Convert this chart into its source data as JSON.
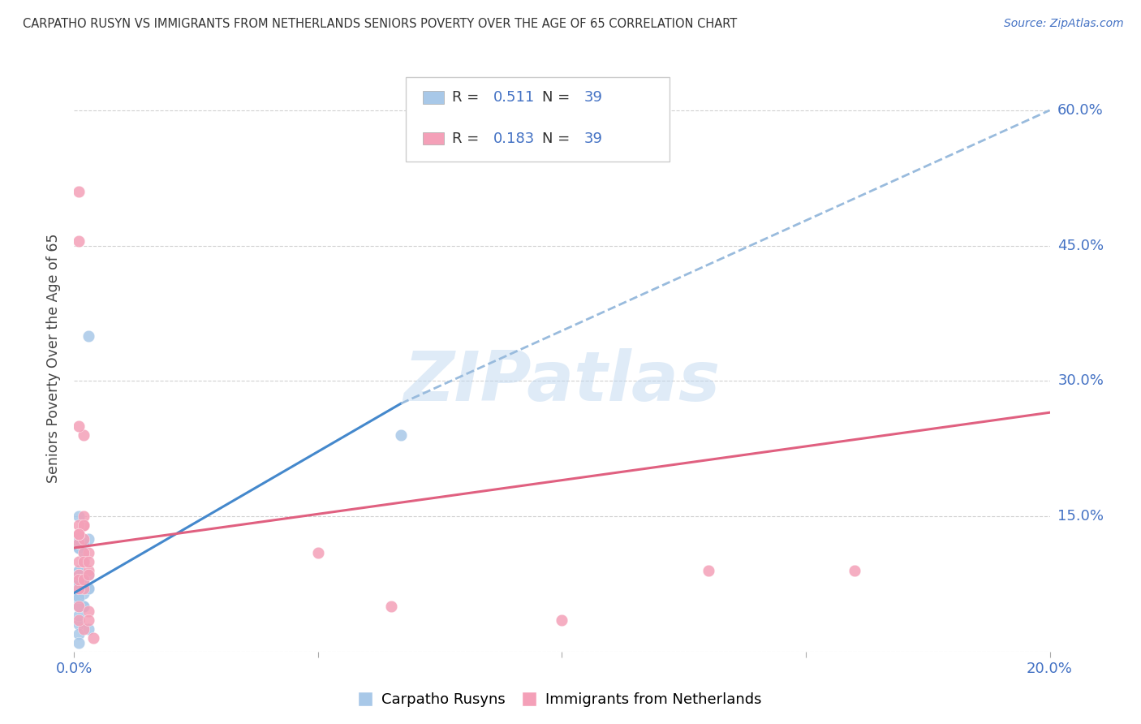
{
  "title": "CARPATHO RUSYN VS IMMIGRANTS FROM NETHERLANDS SENIORS POVERTY OVER THE AGE OF 65 CORRELATION CHART",
  "source": "Source: ZipAtlas.com",
  "ylabel": "Seniors Poverty Over the Age of 65",
  "xlim": [
    0.0,
    0.2
  ],
  "ylim": [
    0.0,
    0.65
  ],
  "yticks": [
    0.0,
    0.15,
    0.3,
    0.45,
    0.6
  ],
  "xticks": [
    0.0,
    0.05,
    0.1,
    0.15,
    0.2
  ],
  "ytick_labels_right": [
    "",
    "15.0%",
    "30.0%",
    "45.0%",
    "60.0%"
  ],
  "series1_color": "#a8c8e8",
  "series2_color": "#f4a0b8",
  "trend1_solid_color": "#4488cc",
  "trend1_dash_color": "#99bbdd",
  "trend2_color": "#e06080",
  "watermark": "ZIPatlas",
  "R1": "0.511",
  "N1": "39",
  "R2": "0.183",
  "N2": "39",
  "label1": "Carpatho Rusyns",
  "label2": "Immigrants from Netherlands",
  "accent_color": "#4472c4",
  "blue_x": [
    0.001,
    0.002,
    0.002,
    0.003,
    0.001,
    0.001,
    0.002,
    0.003,
    0.001,
    0.001,
    0.002,
    0.003,
    0.001,
    0.002,
    0.001,
    0.001,
    0.001,
    0.002,
    0.001,
    0.001,
    0.001,
    0.001,
    0.002,
    0.001,
    0.001,
    0.001,
    0.001,
    0.002,
    0.003,
    0.002,
    0.003,
    0.001,
    0.001,
    0.001,
    0.001,
    0.001,
    0.001,
    0.003,
    0.067
  ],
  "blue_y": [
    0.115,
    0.11,
    0.08,
    0.085,
    0.09,
    0.065,
    0.08,
    0.125,
    0.07,
    0.06,
    0.12,
    0.07,
    0.075,
    0.1,
    0.09,
    0.05,
    0.03,
    0.05,
    0.15,
    0.115,
    0.12,
    0.125,
    0.1,
    0.04,
    0.02,
    0.055,
    0.06,
    0.065,
    0.025,
    0.05,
    0.07,
    0.085,
    0.08,
    0.075,
    0.01,
    0.05,
    0.06,
    0.35,
    0.24
  ],
  "pink_x": [
    0.001,
    0.002,
    0.003,
    0.003,
    0.002,
    0.002,
    0.001,
    0.001,
    0.001,
    0.002,
    0.001,
    0.001,
    0.001,
    0.002,
    0.001,
    0.002,
    0.002,
    0.001,
    0.002,
    0.001,
    0.001,
    0.001,
    0.001,
    0.001,
    0.002,
    0.002,
    0.001,
    0.002,
    0.003,
    0.002,
    0.003,
    0.003,
    0.004,
    0.003,
    0.05,
    0.065,
    0.1,
    0.13,
    0.16
  ],
  "pink_y": [
    0.13,
    0.14,
    0.11,
    0.09,
    0.14,
    0.07,
    0.12,
    0.13,
    0.07,
    0.1,
    0.085,
    0.1,
    0.08,
    0.15,
    0.14,
    0.025,
    0.125,
    0.13,
    0.14,
    0.05,
    0.035,
    0.455,
    0.51,
    0.13,
    0.11,
    0.24,
    0.25,
    0.1,
    0.045,
    0.08,
    0.085,
    0.1,
    0.015,
    0.035,
    0.11,
    0.05,
    0.035,
    0.09,
    0.09
  ],
  "trend1_x0": 0.0,
  "trend1_y0": 0.065,
  "trend1_x1": 0.067,
  "trend1_y1": 0.275,
  "trend1_dash_x0": 0.067,
  "trend1_dash_y0": 0.275,
  "trend1_dash_x1": 0.2,
  "trend1_dash_y1": 0.6,
  "trend2_x0": 0.0,
  "trend2_y0": 0.115,
  "trend2_x1": 0.2,
  "trend2_y1": 0.265
}
